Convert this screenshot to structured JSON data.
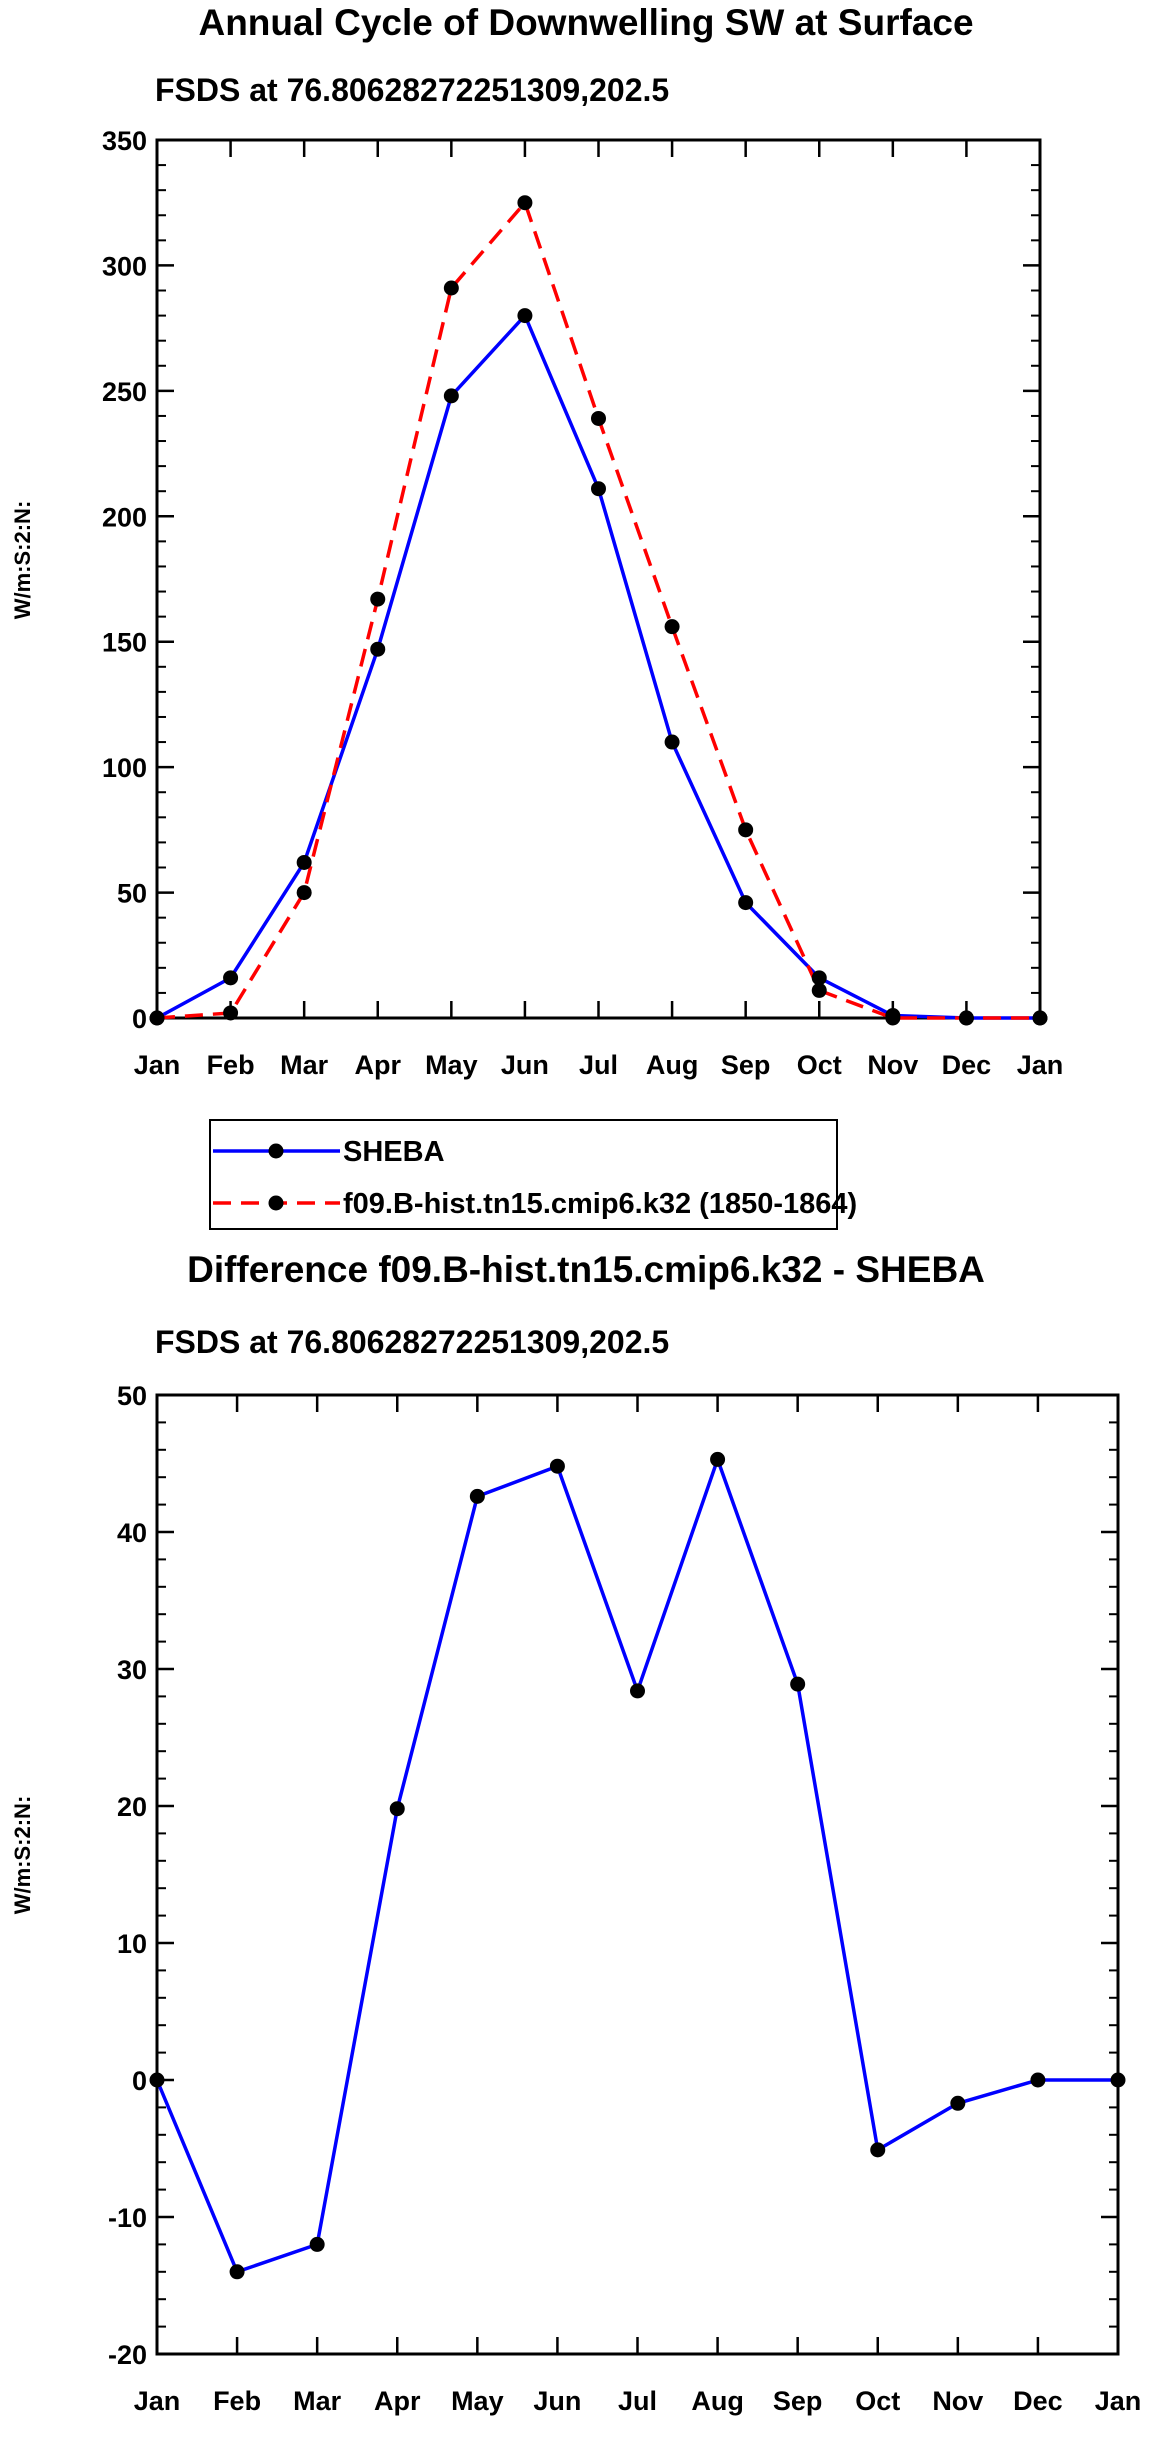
{
  "chart_data": [
    {
      "type": "line",
      "title": "Annual Cycle of Downwelling SW at Surface",
      "subtitle": "FSDS at 76.80628272251309,202.5",
      "xlabel": "",
      "ylabel": "W/m:S:2:N:",
      "categories": [
        "Jan",
        "Feb",
        "Mar",
        "Apr",
        "May",
        "Jun",
        "Jul",
        "Aug",
        "Sep",
        "Oct",
        "Nov",
        "Dec",
        "Jan"
      ],
      "ylim": [
        0,
        350
      ],
      "yticks": [
        0,
        50,
        100,
        150,
        200,
        250,
        300,
        350
      ],
      "series": [
        {
          "name": "SHEBA",
          "color": "#0000ff",
          "dash": "solid",
          "values": [
            0,
            16,
            62,
            147,
            248,
            280,
            211,
            110,
            46,
            16,
            1,
            0,
            0
          ]
        },
        {
          "name": "f09.B-hist.tn15.cmip6.k32 (1850-1864)",
          "color": "#ff0000",
          "dash": "dashed",
          "values": [
            0,
            2,
            50,
            167,
            291,
            325,
            239,
            156,
            75,
            11,
            0,
            0,
            0
          ]
        }
      ],
      "legend": "bottom"
    },
    {
      "type": "line",
      "title": "Difference f09.B-hist.tn15.cmip6.k32 - SHEBA",
      "subtitle": "FSDS at 76.80628272251309,202.5",
      "xlabel": "",
      "ylabel": "W/m:S:2:N:",
      "categories": [
        "Jan",
        "Feb",
        "Mar",
        "Apr",
        "May",
        "Jun",
        "Jul",
        "Aug",
        "Sep",
        "Oct",
        "Nov",
        "Dec",
        "Jan"
      ],
      "ylim": [
        -20,
        50
      ],
      "yticks": [
        -20,
        -10,
        0,
        10,
        20,
        30,
        40,
        50
      ],
      "series": [
        {
          "name": "Difference",
          "color": "#0000ff",
          "dash": "solid",
          "values": [
            0,
            -14,
            -12,
            19.8,
            42.6,
            44.8,
            28.4,
            45.3,
            28.9,
            -5.1,
            -1.7,
            0,
            0
          ]
        }
      ]
    }
  ]
}
